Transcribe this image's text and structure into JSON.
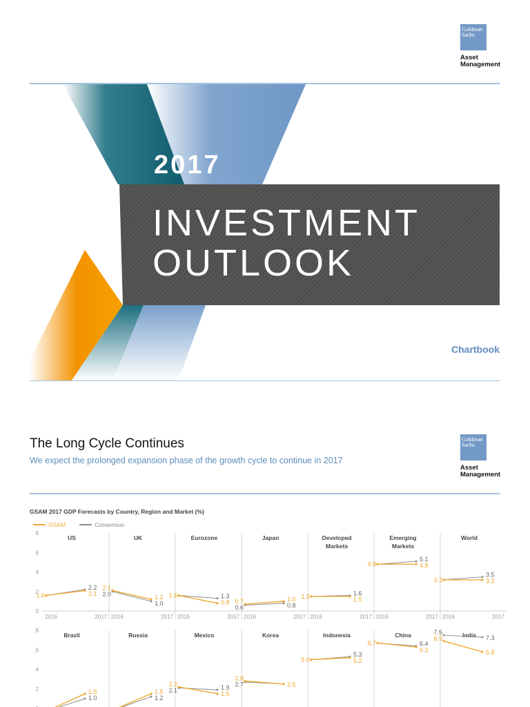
{
  "logo": {
    "line1": "Goldman",
    "line2": "Sachs",
    "line3": "Asset",
    "line4": "Management"
  },
  "cover": {
    "year": "2017",
    "title_line1": "INVESTMENT",
    "title_line2": "OUTLOOK",
    "chartbook": "Chartbook"
  },
  "section": {
    "title": "The Long Cycle Continues",
    "subtitle": "We expect the prolonged expansion phase of the growth cycle to continue in 2017"
  },
  "colors": {
    "gsam": "#f0a830",
    "consensus": "#8c8c8c",
    "accent": "#5f8dbd",
    "rule": "#a3c1dc"
  },
  "chart_data": {
    "type": "line",
    "title": "GSAM 2017 GDP Forecasts by Country, Region and Market (%)",
    "legend": [
      "GSAM",
      "Consensus"
    ],
    "x": [
      "2016",
      "2017"
    ],
    "ylim": [
      0,
      8
    ],
    "yticks": [
      "0",
      "2",
      "4",
      "6",
      "8"
    ],
    "rows": [
      {
        "panels": [
          {
            "name": "US",
            "gsam": [
              1.6,
              2.1
            ],
            "consensus": [
              1.6,
              2.2
            ],
            "labels": {
              "g0": "1.6",
              "g1": "2.1",
              "c0": "",
              "c1": "2.2"
            }
          },
          {
            "name": "UK",
            "gsam": [
              2.1,
              1.2
            ],
            "consensus": [
              2.0,
              1.0
            ],
            "labels": {
              "g0": "2.1",
              "g1": "1.2",
              "c0": "2.0",
              "c1": "1.0"
            }
          },
          {
            "name": "Eurozone",
            "gsam": [
              1.6,
              0.8
            ],
            "consensus": [
              1.6,
              1.3
            ],
            "labels": {
              "g0": "1.6",
              "g1": "0.8",
              "c0": "",
              "c1": "1.3"
            }
          },
          {
            "name": "Japan",
            "gsam": [
              0.7,
              1.0
            ],
            "consensus": [
              0.6,
              0.8
            ],
            "labels": {
              "g0": "0.7",
              "g1": "1.0",
              "c0": "0.6",
              "c1": "0.8"
            }
          },
          {
            "name": "Developed Markets",
            "gsam": [
              1.5,
              1.5
            ],
            "consensus": [
              1.5,
              1.6
            ],
            "labels": {
              "g0": "1.5",
              "g1": "1.5",
              "c0": "",
              "c1": "1.6"
            }
          },
          {
            "name": "Emerging Markets",
            "gsam": [
              4.8,
              4.8
            ],
            "consensus": [
              4.8,
              5.1
            ],
            "labels": {
              "g0": "4.8",
              "g1": "4.8",
              "c0": "",
              "c1": "5.1"
            }
          },
          {
            "name": "World",
            "gsam": [
              3.2,
              3.2
            ],
            "consensus": [
              3.2,
              3.5
            ],
            "labels": {
              "g0": "3.2",
              "g1": "3.2",
              "c0": "",
              "c1": "3.5"
            }
          }
        ]
      },
      {
        "panels": [
          {
            "name": "Brazil",
            "gsam": [
              -0.3,
              1.5
            ],
            "consensus": [
              -0.3,
              1.0
            ],
            "labels": {
              "g0": "",
              "g1": "1.5",
              "c0": "",
              "c1": "1.0"
            }
          },
          {
            "name": "Russia",
            "gsam": [
              -0.2,
              1.5
            ],
            "consensus": [
              -0.2,
              1.2
            ],
            "labels": {
              "g0": "",
              "g1": "1.5",
              "c0": "",
              "c1": "1.2"
            }
          },
          {
            "name": "Mexico",
            "gsam": [
              2.2,
              1.5
            ],
            "consensus": [
              2.1,
              1.9
            ],
            "labels": {
              "g0": "2.2",
              "g1": "1.5",
              "c0": "2.1",
              "c1": "1.9"
            }
          },
          {
            "name": "Korea",
            "gsam": [
              2.8,
              2.5
            ],
            "consensus": [
              2.7,
              2.5
            ],
            "labels": {
              "g0": "2.8",
              "g1": "2.5",
              "c0": "2.7",
              "c1": ""
            }
          },
          {
            "name": "Indonesia",
            "gsam": [
              5.0,
              5.2
            ],
            "consensus": [
              5.0,
              5.3
            ],
            "labels": {
              "g0": "5.0",
              "g1": "5.2",
              "c0": "",
              "c1": "5.3"
            }
          },
          {
            "name": "China",
            "gsam": [
              6.7,
              6.3
            ],
            "consensus": [
              6.7,
              6.4
            ],
            "labels": {
              "g0": "6.7",
              "g1": "6.3",
              "c0": "",
              "c1": "6.4"
            }
          },
          {
            "name": "India",
            "gsam": [
              6.9,
              5.8
            ],
            "consensus": [
              7.5,
              7.3
            ],
            "labels": {
              "g0": "6.9",
              "g1": "5.8",
              "c0": "7.5",
              "c1": "7.3"
            }
          }
        ]
      }
    ]
  }
}
